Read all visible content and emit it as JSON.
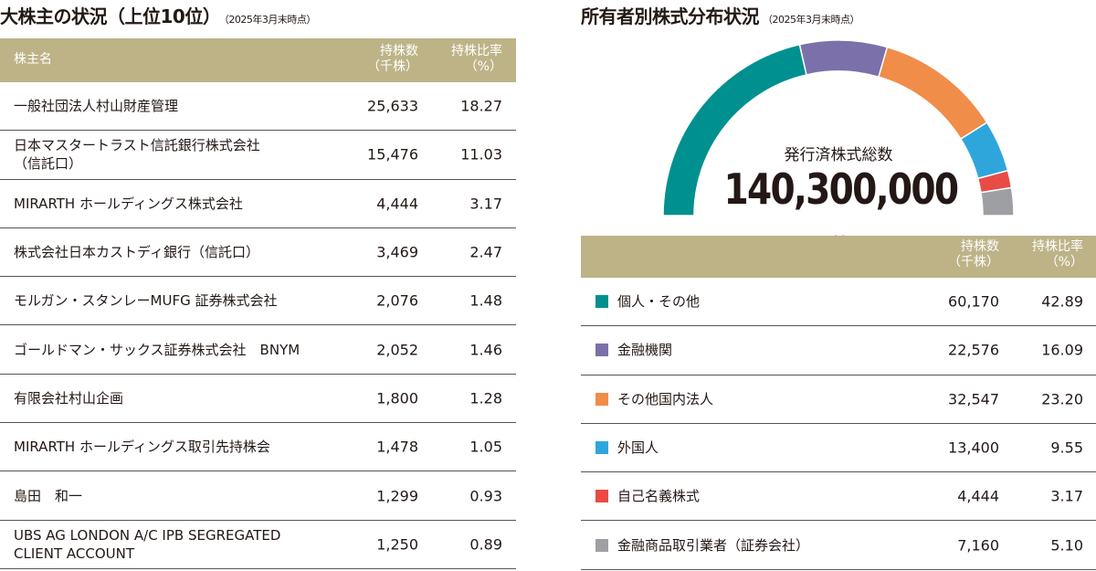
{
  "left": {
    "title": "大株主の状況（上位10位）",
    "subtitle": "（2025年3月末時点）",
    "headers": {
      "name": "株主名",
      "shares": "持株数\n（千株）",
      "ratio": "持株比率\n（%）"
    },
    "rows": [
      {
        "name": "一般社団法人村山財産管理",
        "shares": "25,633",
        "ratio": "18.27"
      },
      {
        "name": "日本マスタートラスト信託銀行株式会社\n（信託口）",
        "shares": "15,476",
        "ratio": "11.03"
      },
      {
        "name": "MIRARTH ホールディングス株式会社",
        "shares": "4,444",
        "ratio": "3.17"
      },
      {
        "name": "株式会社日本カストディ銀行（信託口）",
        "shares": "3,469",
        "ratio": "2.47"
      },
      {
        "name": "モルガン・スタンレーMUFG 証券株式会社",
        "shares": "2,076",
        "ratio": "1.48"
      },
      {
        "name": "ゴールドマン・サックス証券株式会社　BNYM",
        "shares": "2,052",
        "ratio": "1.46"
      },
      {
        "name": "有限会社村山企画",
        "shares": "1,800",
        "ratio": "1.28"
      },
      {
        "name": "MIRARTH ホールディングス取引先持株会",
        "shares": "1,478",
        "ratio": "1.05"
      },
      {
        "name": "島田　和一",
        "shares": "1,299",
        "ratio": "0.93"
      },
      {
        "name": "UBS AG LONDON A/C IPB SEGREGATED\nCLIENT ACCOUNT",
        "shares": "1,250",
        "ratio": "0.89"
      }
    ]
  },
  "right": {
    "title": "所有者別株式分布状況",
    "subtitle": "（2025年3月末時点）",
    "center_label": "発行済株式総数",
    "total": "140,300,000",
    "total_unit": "株",
    "headers": {
      "shares": "持株数\n（千株）",
      "ratio": "持株比率\n（%）"
    },
    "rows": [
      {
        "name": "個人・その他",
        "shares": "60,170",
        "ratio": "42.89",
        "color": "#00908f"
      },
      {
        "name": "金融機関",
        "shares": "22,576",
        "ratio": "16.09",
        "color": "#7c70ab"
      },
      {
        "name": "その他国内法人",
        "shares": "32,547",
        "ratio": "23.20",
        "color": "#f08d49"
      },
      {
        "name": "外国人",
        "shares": "13,400",
        "ratio": "9.55",
        "color": "#2fa6db"
      },
      {
        "name": "自己名義株式",
        "shares": "4,444",
        "ratio": "3.17",
        "color": "#e84c45"
      },
      {
        "name": "金融商品取引業者（証券会社）",
        "shares": "7,160",
        "ratio": "5.10",
        "color": "#9d9fa2"
      }
    ]
  },
  "chart_data": {
    "type": "pie",
    "style": "half-donut",
    "categories": [
      "個人・その他",
      "金融機関",
      "その他国内法人",
      "外国人",
      "自己名義株式",
      "金融商品取引業者（証券会社）"
    ],
    "values": [
      42.89,
      16.09,
      23.2,
      9.55,
      3.17,
      5.1
    ],
    "colors": [
      "#00908f",
      "#7c70ab",
      "#f08d49",
      "#2fa6db",
      "#e84c45",
      "#9d9fa2"
    ]
  }
}
